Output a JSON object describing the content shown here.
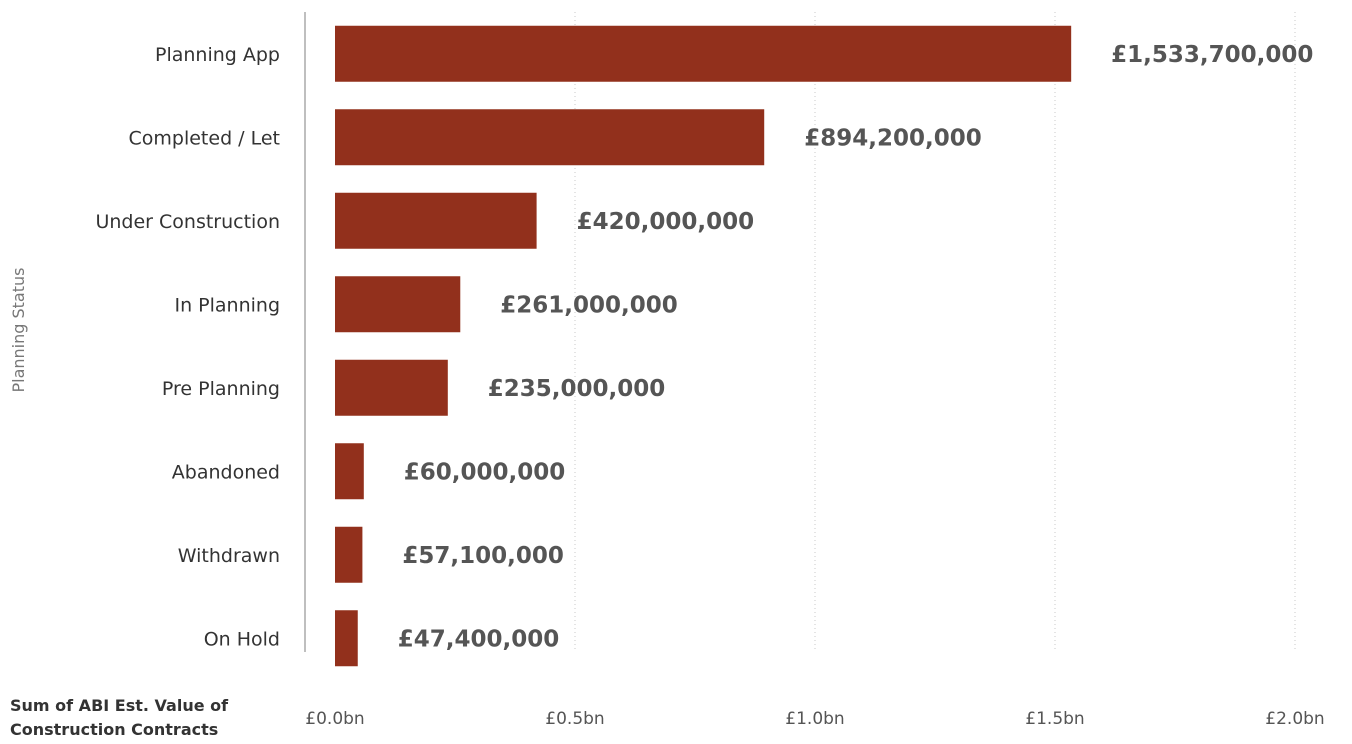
{
  "chart_data": {
    "type": "bar",
    "orientation": "horizontal",
    "ylabel": "Planning Status",
    "xlabel": "Sum of ABI Est. Value of Construction Contracts",
    "categories": [
      "Planning App",
      "Completed / Let",
      "Under Construction",
      "In Planning",
      "Pre Planning",
      "Abandoned",
      "Withdrawn",
      "On Hold"
    ],
    "values": [
      1533700000,
      894200000,
      420000000,
      261000000,
      235000000,
      60000000,
      57100000,
      47400000
    ],
    "value_labels": [
      "£1,533,700,000",
      "£894,200,000",
      "£420,000,000",
      "£261,000,000",
      "£235,000,000",
      "£60,000,000",
      "£57,100,000",
      "£47,400,000"
    ],
    "x_ticks": [
      0,
      500000000,
      1000000000,
      1500000000,
      2000000000
    ],
    "x_tick_labels": [
      "£0.0bn",
      "£0.5bn",
      "£1.0bn",
      "£1.5bn",
      "£2.0bn"
    ],
    "xlim": [
      0,
      2000000000
    ],
    "bar_color": "#92301c",
    "grid": "vertical dotted",
    "legend": "none"
  }
}
